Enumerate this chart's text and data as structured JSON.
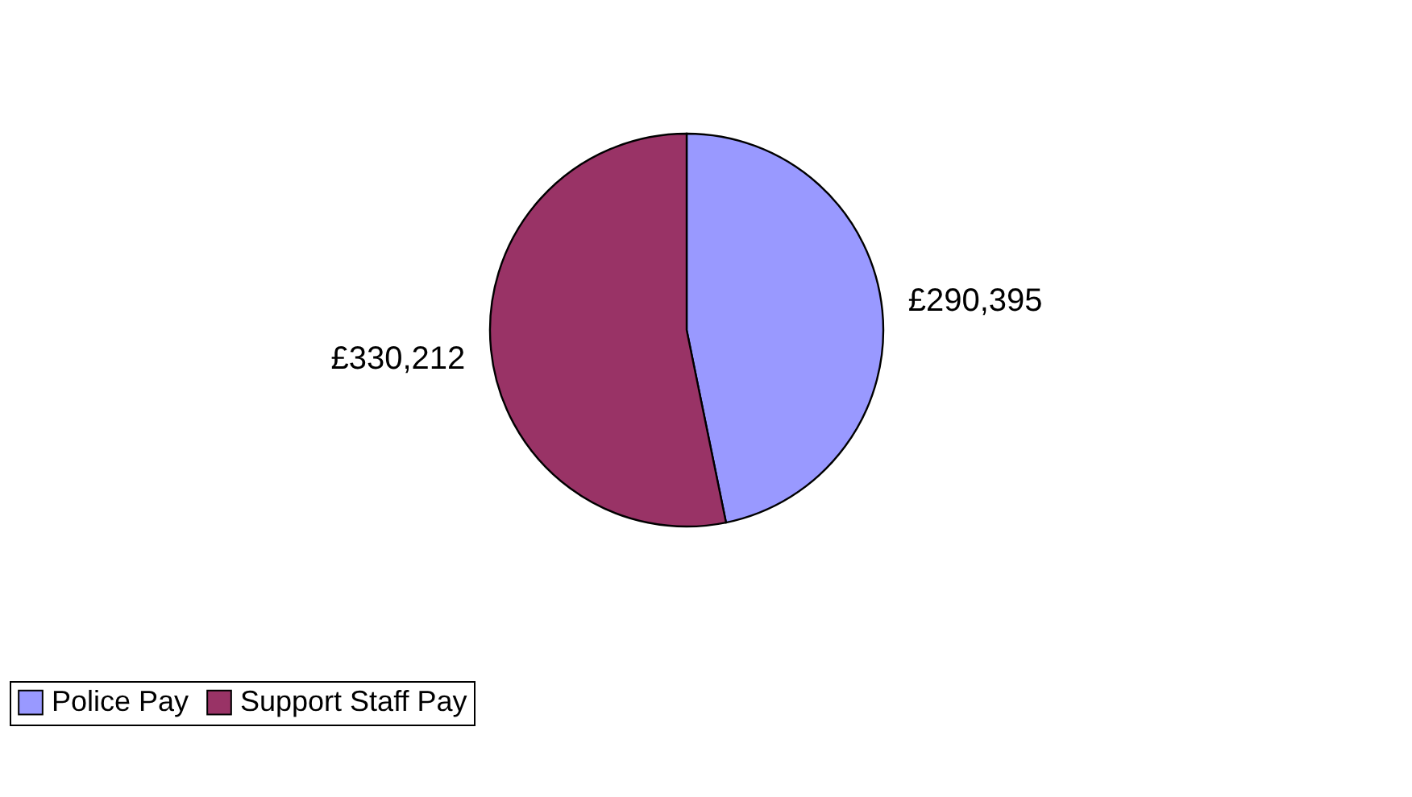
{
  "chart_data": {
    "type": "pie",
    "categories": [
      "Police Pay",
      "Support Staff Pay"
    ],
    "values": [
      290395,
      330212
    ],
    "colors": [
      "#9999ff",
      "#993366"
    ],
    "value_labels": [
      "£290,395",
      "£330,212"
    ],
    "legend": "bottom"
  }
}
